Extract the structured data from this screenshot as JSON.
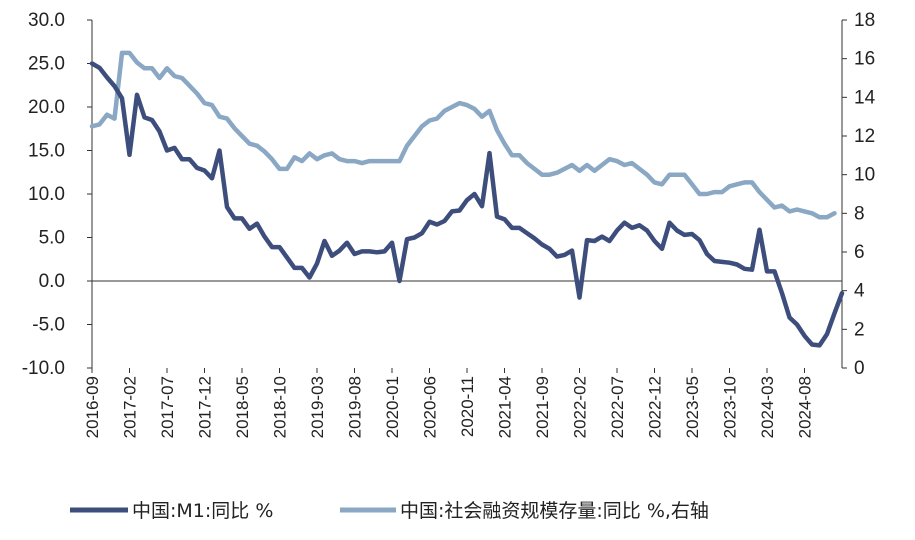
{
  "chart_data": {
    "type": "line",
    "x_tick_labels": [
      "2016-09",
      "2017-02",
      "2017-07",
      "2017-12",
      "2018-05",
      "2018-10",
      "2019-03",
      "2019-08",
      "2020-01",
      "2020-06",
      "2020-11",
      "2021-04",
      "2021-09",
      "2022-02",
      "2022-07",
      "2022-12",
      "2023-05",
      "2023-10",
      "2024-03",
      "2024-08"
    ],
    "left_axis": {
      "ylim": [
        -10,
        30
      ],
      "ticks": [
        "-10.0",
        "-5.0",
        "0.0",
        "5.0",
        "10.0",
        "15.0",
        "20.0",
        "25.0",
        "30.0"
      ]
    },
    "right_axis": {
      "ylim": [
        0,
        18
      ],
      "ticks": [
        "0",
        "2",
        "4",
        "6",
        "8",
        "10",
        "12",
        "14",
        "16",
        "18"
      ]
    },
    "grid": false,
    "legend_position": "bottom",
    "series": [
      {
        "name": "中国:M1:同比 %",
        "axis": "left",
        "color": "#3d4d7c",
        "values": [
          25.0,
          24.5,
          23.4,
          22.4,
          21.0,
          14.5,
          21.4,
          18.8,
          18.5,
          17.2,
          15.0,
          15.3,
          14.0,
          14.0,
          13.0,
          12.7,
          11.8,
          15.0,
          8.5,
          7.2,
          7.2,
          6.0,
          6.6,
          5.1,
          3.9,
          3.9,
          2.7,
          1.5,
          1.5,
          0.4,
          2.0,
          4.6,
          2.9,
          3.5,
          4.4,
          3.1,
          3.4,
          3.4,
          3.3,
          3.4,
          4.4,
          0.0,
          4.8,
          5.0,
          5.5,
          6.8,
          6.5,
          6.9,
          8.0,
          8.1,
          9.3,
          10.0,
          8.6,
          14.7,
          7.4,
          7.1,
          6.1,
          6.1,
          5.5,
          4.9,
          4.2,
          3.7,
          2.8,
          3.0,
          3.5,
          -1.9,
          4.7,
          4.6,
          5.1,
          4.6,
          5.8,
          6.7,
          6.1,
          6.4,
          5.8,
          4.6,
          3.7,
          6.7,
          5.8,
          5.3,
          5.4,
          4.7,
          3.1,
          2.3,
          2.2,
          2.1,
          1.9,
          1.4,
          1.3,
          5.9,
          1.1,
          1.1,
          -1.4,
          -4.2,
          -5.0,
          -6.3,
          -7.3,
          -7.4,
          -6.1,
          -3.7,
          -1.4
        ]
      },
      {
        "name": "中国:社会融资规模存量:同比 %,右轴",
        "axis": "right",
        "color": "#8aa8c4",
        "values": [
          12.5,
          12.6,
          13.1,
          12.9,
          16.3,
          16.3,
          15.8,
          15.5,
          15.5,
          15.0,
          15.5,
          15.1,
          15.0,
          14.6,
          14.2,
          13.7,
          13.6,
          13.0,
          12.9,
          12.4,
          12.0,
          11.6,
          11.5,
          11.2,
          10.8,
          10.3,
          10.3,
          10.9,
          10.7,
          11.1,
          10.8,
          11.0,
          11.1,
          10.8,
          10.7,
          10.7,
          10.6,
          10.7,
          10.7,
          10.7,
          10.7,
          10.7,
          11.5,
          12.0,
          12.5,
          12.8,
          12.9,
          13.3,
          13.5,
          13.7,
          13.6,
          13.4,
          13.0,
          13.3,
          12.3,
          11.6,
          11.0,
          11.0,
          10.6,
          10.3,
          10.0,
          10.0,
          10.1,
          10.3,
          10.5,
          10.2,
          10.5,
          10.2,
          10.5,
          10.8,
          10.7,
          10.5,
          10.6,
          10.3,
          10.0,
          9.6,
          9.5,
          10.0,
          10.0,
          10.0,
          9.5,
          9.0,
          9.0,
          9.1,
          9.1,
          9.4,
          9.5,
          9.6,
          9.6,
          9.1,
          8.7,
          8.3,
          8.4,
          8.1,
          8.2,
          8.1,
          8.0,
          7.8,
          7.8,
          8.0
        ]
      }
    ]
  }
}
